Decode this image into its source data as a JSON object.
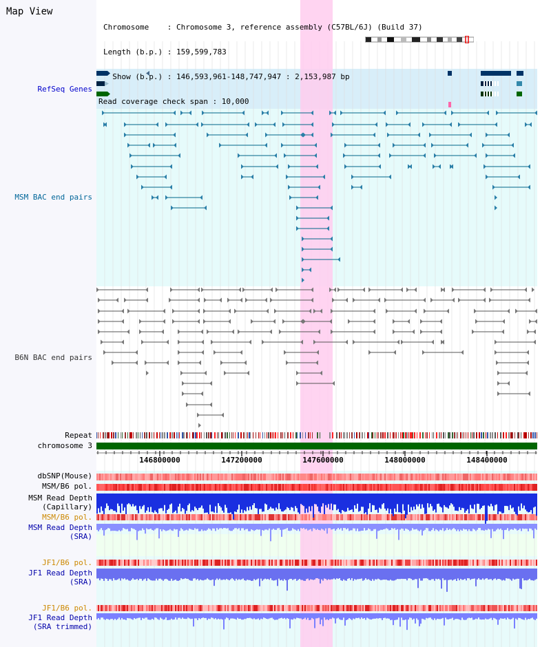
{
  "page": {
    "title": "Map View"
  },
  "info": {
    "chromosome": "Chromosome    : Chromosome 3, reference assembly (C57BL/6J) (Build 37)",
    "length": "Length (b.p.) : 159,599,783",
    "show": "  Show (b.p.) : 146,593,961-148,747,947 : 2,153,987 bp",
    "span": "Read coverage check span : 10,000"
  },
  "tracks": {
    "refseq": {
      "label": "RefSeq Genes",
      "color": "#0000cc"
    },
    "msm_bac": {
      "label": "MSM BAC end pairs",
      "color": "#006699"
    },
    "b6n_bac": {
      "label": "B6N BAC end pairs",
      "color": "#333333"
    },
    "repeat": {
      "label": "Repeat",
      "color": "#000000"
    },
    "chromosome": {
      "label": "chromosome 3",
      "color": "#000000"
    },
    "dbsnp": {
      "label": "dbSNP(Mouse)",
      "color": "#000000"
    },
    "msm_b6_pol_1": {
      "label": "MSM/B6 pol.",
      "color": "#000000"
    },
    "msm_depth_cap_1": {
      "label": "MSM Read Depth",
      "color": "#000000"
    },
    "msm_depth_cap_2": {
      "label": "(Capillary)",
      "color": "#000000"
    },
    "msm_b6_pol_2": {
      "label": "MSM/B6 pol.",
      "color": "#cc8800"
    },
    "msm_depth_sra_1": {
      "label": "MSM Read Depth",
      "color": "#0000aa"
    },
    "msm_depth_sra_2": {
      "label": "(SRA)",
      "color": "#0000aa"
    },
    "jf1_b6_pol": {
      "label": "JF1/B6 pol.",
      "color": "#cc8800"
    },
    "jf1_depth_sra_1": {
      "label": "JF1 Read Depth",
      "color": "#0000aa"
    },
    "jf1_depth_sra_2": {
      "label": "(SRA)",
      "color": "#0000aa"
    },
    "jf1_b6_pol_2": {
      "label": "JF1/B6 pol.",
      "color": "#cc8800"
    },
    "jf1_depth_trim_1": {
      "label": "JF1 Read Depth",
      "color": "#0000aa"
    },
    "jf1_depth_trim_2": {
      "label": "(SRA trimmed)",
      "color": "#0000aa"
    }
  },
  "axis": {
    "ticks": [
      "146800000",
      "147200000",
      "147600000",
      "148000000",
      "148400000"
    ],
    "range_bp": [
      146593961,
      148747947
    ]
  },
  "colors": {
    "highlight": "#ffccee",
    "refseq_bg": "#d8eef9",
    "bac_bg": "#e6fbfb",
    "msm_color": "#006688",
    "b6n_color": "#555555",
    "chrom_bar": "#006600",
    "depth_blue": "#1a2fe0",
    "pol_red": "#ee3333"
  }
}
